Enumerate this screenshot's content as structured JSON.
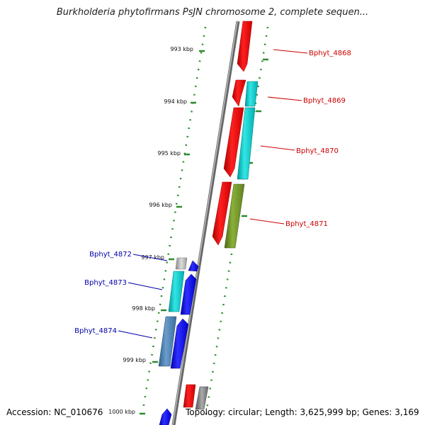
{
  "title": "Burkholderia phytofirmans PsJN chromosome 2, complete sequen...",
  "footer": {
    "accession": "Accession: NC_010676",
    "summary": "Topology: circular; Length: 3,625,999 bp; Genes: 3,169"
  },
  "ticks": [
    "993 kbp",
    "994 kbp",
    "995 kbp",
    "996 kbp",
    "997 kbp",
    "998 kbp",
    "999 kbp",
    "1000 kbp"
  ],
  "gene_labels": {
    "g4868": "Bphyt_4868",
    "g4869": "Bphyt_4869",
    "g4870": "Bphyt_4870",
    "g4871": "Bphyt_4871",
    "g4872": "Bphyt_4872",
    "g4873": "Bphyt_4873",
    "g4874": "Bphyt_4874"
  },
  "colors": {
    "red": "#ff0000",
    "cyan": "#00cccc",
    "olive": "#6b8e23",
    "blue": "#0000ff",
    "steel": "#4682b4",
    "gray": "#aaaaaa",
    "darkgray": "#777777",
    "dots": "#2e8b2e",
    "axis": "#888888"
  }
}
